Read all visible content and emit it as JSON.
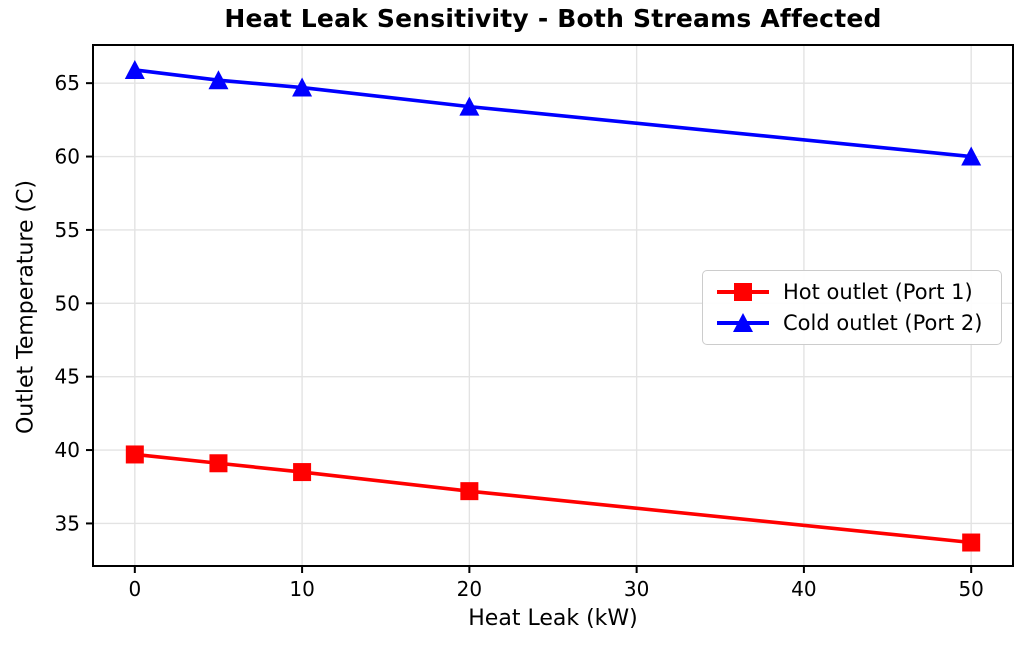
{
  "chart_data": {
    "type": "line",
    "title": "Heat Leak Sensitivity - Both Streams Affected",
    "xlabel": "Heat Leak (kW)",
    "ylabel": "Outlet Temperature (C)",
    "x": [
      0,
      5,
      10,
      20,
      50
    ],
    "series": [
      {
        "name": "Hot outlet (Port 1)",
        "color": "#ff0000",
        "marker": "square",
        "values": [
          39.7,
          39.1,
          38.5,
          37.2,
          33.7
        ]
      },
      {
        "name": "Cold outlet (Port 2)",
        "color": "#0000ff",
        "marker": "triangle-up",
        "values": [
          65.9,
          65.2,
          64.7,
          63.4,
          60.0
        ]
      }
    ],
    "xticks": [
      0,
      10,
      20,
      30,
      40,
      50
    ],
    "yticks": [
      35,
      40,
      45,
      50,
      55,
      60,
      65
    ],
    "xlim": [
      -2.5,
      52.5
    ],
    "ylim": [
      32.1,
      67.6
    ],
    "grid": true,
    "grid_color": "#e3e3e3",
    "spine_color": "#000000",
    "background_color": "#ffffff",
    "legend_position": "center-right"
  }
}
